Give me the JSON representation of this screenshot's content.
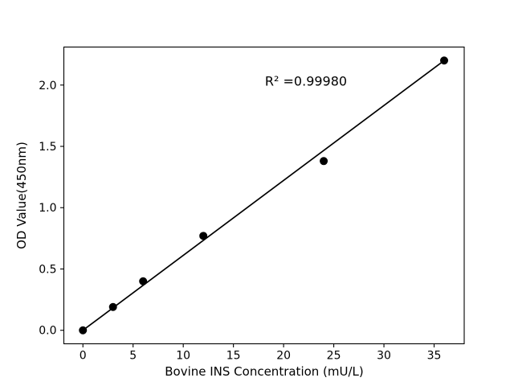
{
  "figure": {
    "background_color": "#ffffff",
    "foreground_color": "#000000"
  },
  "chart_data": {
    "type": "scatter",
    "title": "",
    "xlabel": "Bovine INS Concentration (mU/L)",
    "ylabel": "OD Value(450nm)",
    "x": [
      0,
      3,
      6,
      12,
      24,
      36
    ],
    "y": [
      0.0,
      0.19,
      0.4,
      0.77,
      1.38,
      2.2
    ],
    "fit_line": {
      "x": [
        0,
        36
      ],
      "y": [
        0.0,
        2.2
      ]
    },
    "annotation": {
      "text": "R² =0.99980",
      "x": 22.2,
      "y": 2.03
    },
    "xlim": [
      -1.9,
      38.0
    ],
    "ylim": [
      -0.11,
      2.31
    ],
    "x_tick_values": [
      0,
      5,
      10,
      15,
      20,
      25,
      30,
      35
    ],
    "x_tick_labels": [
      "0",
      "5",
      "10",
      "15",
      "20",
      "25",
      "30",
      "35"
    ],
    "y_tick_values": [
      0.0,
      0.5,
      1.0,
      1.5,
      2.0
    ],
    "y_tick_labels": [
      "0.0",
      "0.5",
      "1.0",
      "1.5",
      "2.0"
    ],
    "grid": false,
    "legend": "none",
    "point_color": "#000000",
    "line_color": "#000000"
  }
}
